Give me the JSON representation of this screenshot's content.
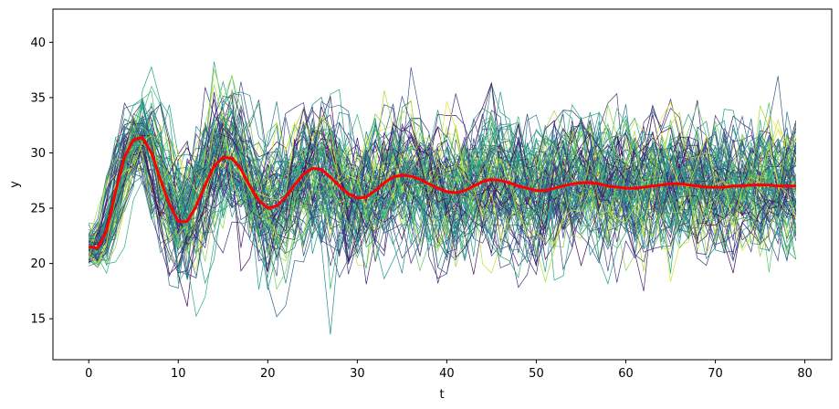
{
  "chart_data": {
    "type": "line",
    "title": "",
    "xlabel": "t",
    "ylabel": "y",
    "xlim": [
      -4,
      83
    ],
    "ylim": [
      11.3,
      43
    ],
    "xticks": [
      0,
      10,
      20,
      30,
      40,
      50,
      60,
      70,
      80
    ],
    "yticks": [
      15,
      20,
      25,
      30,
      35,
      40
    ],
    "grid": false,
    "legend": "none",
    "n_points": 80,
    "n_sample_series": 100,
    "sample_colormap": "viridis",
    "sample_line_width": "thin",
    "sample_series_description": "Sample trajectories oscillating around the mean with spread of roughly ±6",
    "mean_series": {
      "color": "#ff0000",
      "x": [
        0,
        1,
        2,
        3,
        4,
        5,
        6,
        7,
        8,
        9,
        10,
        11,
        12,
        13,
        14,
        15,
        16,
        17,
        18,
        19,
        20,
        21,
        22,
        23,
        24,
        25,
        26,
        27,
        28,
        29,
        30,
        31,
        32,
        33,
        34,
        35,
        36,
        37,
        38,
        39,
        40,
        41,
        42,
        43,
        44,
        45,
        46,
        47,
        48,
        49,
        50,
        51,
        52,
        53,
        54,
        55,
        56,
        57,
        58,
        59,
        60,
        61,
        62,
        63,
        64,
        65,
        66,
        67,
        68,
        69,
        70,
        71,
        72,
        73,
        74,
        75,
        76,
        77,
        78,
        79
      ],
      "values": [
        21.5,
        21.4,
        23.0,
        26.5,
        29.6,
        31.2,
        31.4,
        30.0,
        27.6,
        25.4,
        23.8,
        23.8,
        25.2,
        27.1,
        28.8,
        29.6,
        29.5,
        28.5,
        27.0,
        25.7,
        25.0,
        25.2,
        26.0,
        27.1,
        28.1,
        28.6,
        28.5,
        27.8,
        27.0,
        26.3,
        25.9,
        26.0,
        26.6,
        27.3,
        27.8,
        28.0,
        27.9,
        27.6,
        27.2,
        26.8,
        26.5,
        26.4,
        26.6,
        27.0,
        27.4,
        27.6,
        27.5,
        27.3,
        27.0,
        26.8,
        26.6,
        26.6,
        26.8,
        27.0,
        27.2,
        27.3,
        27.3,
        27.2,
        27.0,
        26.9,
        26.8,
        26.8,
        26.9,
        27.0,
        27.1,
        27.2,
        27.2,
        27.1,
        27.0,
        26.9,
        26.9,
        26.9,
        27.0,
        27.0,
        27.1,
        27.1,
        27.1,
        27.0,
        27.0,
        27.0
      ]
    }
  }
}
